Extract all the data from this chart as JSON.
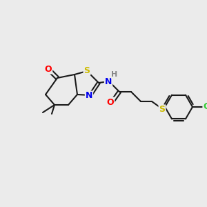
{
  "bg_color": "#ebebeb",
  "bond_color": "#1a1a1a",
  "bond_width": 1.5,
  "atom_colors": {
    "O": "#ff0000",
    "N": "#0000ee",
    "S": "#ccbb00",
    "H": "#888888",
    "Cl": "#33cc33",
    "C": "#1a1a1a"
  },
  "figsize": [
    3.0,
    3.0
  ],
  "dpi": 100
}
